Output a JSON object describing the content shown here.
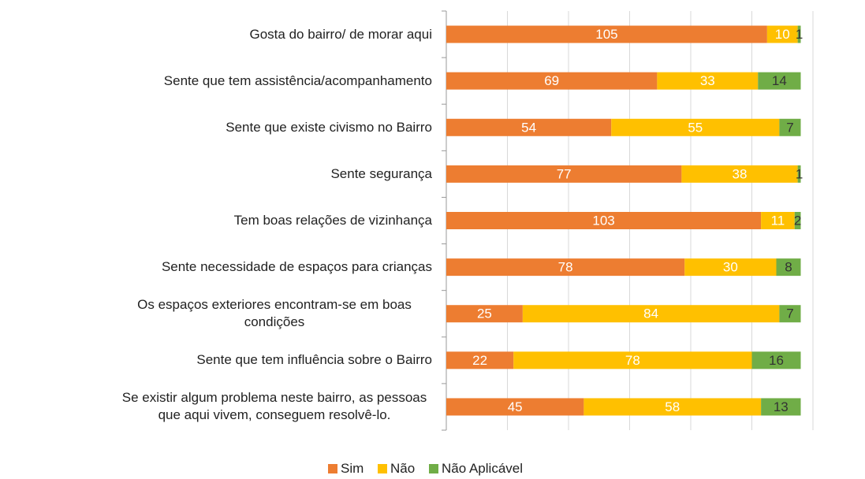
{
  "chart_data": {
    "type": "stacked-barh",
    "categories": [
      "Gosta do bairro/ de morar aqui",
      "Sente que tem assistência/acompanhamento",
      "Sente que existe civismo no Bairro",
      "Sente segurança",
      "Tem boas relações de vizinhança",
      "Sente necessidade de espaços para crianças",
      "Os espaços exteriores encontram-se em boas condições",
      "Sente que tem influência sobre o Bairro",
      "Se existir algum problema neste bairro, as pessoas que aqui vivem, conseguem resolvê-lo."
    ],
    "series": [
      {
        "name": "Sim",
        "color": "#ED7D31",
        "label_color": "#ffffff",
        "values": [
          105,
          69,
          54,
          77,
          103,
          78,
          25,
          22,
          45
        ]
      },
      {
        "name": "Não",
        "color": "#FFC000",
        "label_color": "#ffffff",
        "values": [
          10,
          33,
          55,
          38,
          11,
          30,
          84,
          78,
          58
        ]
      },
      {
        "name": "Não Aplicável",
        "color": "#70AD47",
        "label_color": "#333333",
        "values": [
          1,
          14,
          7,
          1,
          2,
          8,
          7,
          16,
          13
        ]
      }
    ],
    "xlim": [
      0,
      120
    ],
    "xticks": [
      0,
      20,
      40,
      60,
      80,
      100,
      120
    ],
    "grid": true,
    "legend": "bottom"
  }
}
